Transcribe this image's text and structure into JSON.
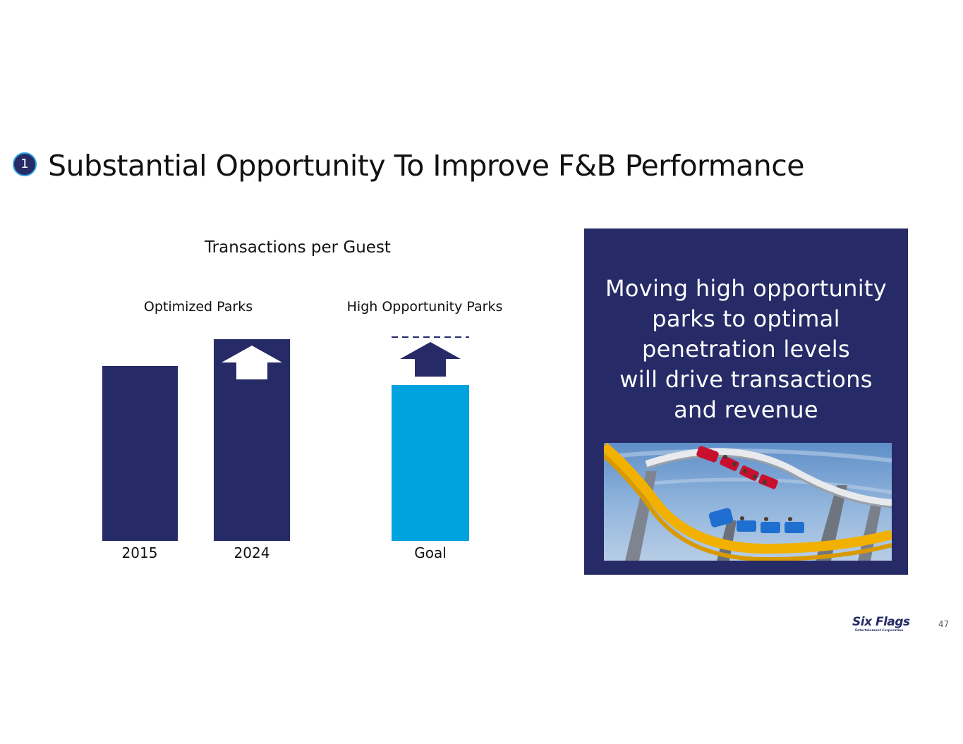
{
  "slide": {
    "badge_number": "1",
    "title": "Substantial Opportunity To Improve F&B Performance",
    "page_number": "47"
  },
  "chart_data": {
    "type": "bar",
    "title": "Transactions per Guest",
    "groups": [
      {
        "label": "Optimized Parks",
        "categories": [
          "2015",
          "2024"
        ]
      },
      {
        "label": "High Opportunity Parks",
        "categories": [
          "Goal"
        ]
      }
    ],
    "categories": [
      "2015",
      "2024",
      "Goal"
    ],
    "values": [
      248,
      286,
      221
    ],
    "goal_target": 289,
    "goal_target_style": "dashed line",
    "arrows": [
      "2024",
      "Goal"
    ],
    "ylim": [
      0,
      300
    ],
    "axis": "none",
    "grid": false,
    "colors": {
      "optimized": "#262b67",
      "high_opportunity": "#00a3de",
      "arrow_on_bar": "#ffffff",
      "arrow_above_bar": "#262b67"
    }
  },
  "callout": {
    "lines": [
      "Moving high opportunity",
      "parks to optimal",
      "penetration levels",
      "will drive transactions",
      "and revenue"
    ],
    "background": "#262b67",
    "image": "roller-coaster-photo"
  },
  "logo": {
    "name": "Six Flags",
    "tagline": "Entertainment Corporation"
  }
}
